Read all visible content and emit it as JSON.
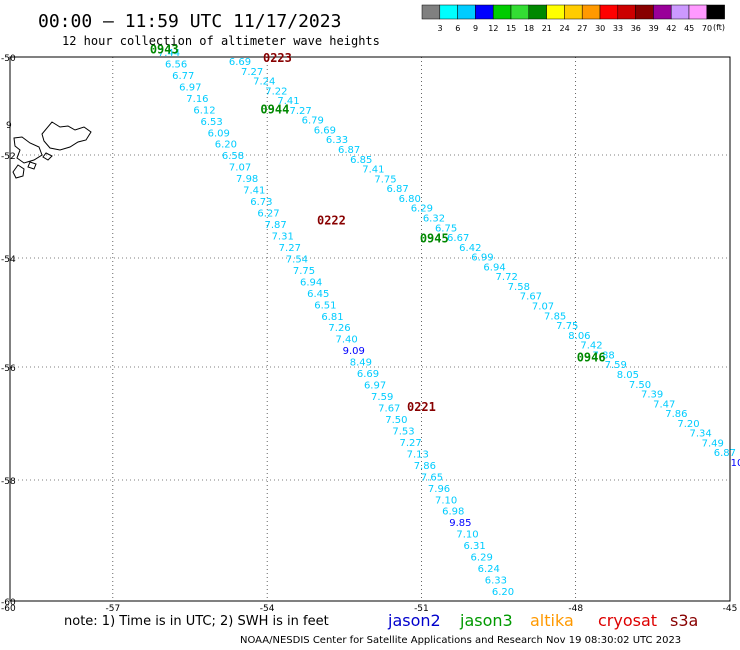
{
  "title": "00:00 – 11:59 UTC 11/17/2023",
  "subtitle": "12 hour collection of altimeter wave heights",
  "note": "note:  1) Time is in UTC;  2) SWH is in feet",
  "credit": "NOAA/NESDIS Center for Satellite Applications and Research    Nov 19 08:30:02 UTC 2023",
  "satellites": [
    {
      "name": "jason2",
      "color": "#0000cc"
    },
    {
      "name": "jason3",
      "color": "#009900"
    },
    {
      "name": "altika",
      "color": "#ff9900"
    },
    {
      "name": "cryosat",
      "color": "#dd0000"
    },
    {
      "name": "s3a",
      "color": "#880000"
    }
  ],
  "legend": {
    "unit": "(ft)",
    "labels": [
      "3",
      "6",
      "9",
      "12",
      "15",
      "18",
      "21",
      "24",
      "27",
      "30",
      "33",
      "36",
      "39",
      "42",
      "45",
      "70"
    ],
    "colors": [
      "#808080",
      "#00ffff",
      "#00ccff",
      "#0000ff",
      "#00cc00",
      "#33dd33",
      "#008800",
      "#ffff00",
      "#ffcc00",
      "#ff9900",
      "#ff0000",
      "#cc0000",
      "#880000",
      "#990099",
      "#cc99ff",
      "#ff99ff",
      "#000000"
    ]
  },
  "chart_data": {
    "type": "scatter",
    "x_ticks": [
      "-57",
      "-54",
      "-51",
      "-48",
      "-45"
    ],
    "y_ticks": [
      "-50",
      "-52",
      "-54",
      "-56",
      "-58",
      "-60"
    ],
    "xlim": [
      -59,
      -45
    ],
    "ylim": [
      -60,
      -50
    ],
    "pass_labels": [
      {
        "text": "0943",
        "lon": -56.0,
        "lat": -49.93,
        "color": "#008800"
      },
      {
        "text": "0223",
        "lon": -53.8,
        "lat": -50.1,
        "color": "#880000"
      },
      {
        "text": "0944",
        "lon": -53.85,
        "lat": -51.15,
        "color": "#008800"
      },
      {
        "text": "0222",
        "lon": -52.75,
        "lat": -53.35,
        "color": "#880000"
      },
      {
        "text": "0945",
        "lon": -50.75,
        "lat": -53.7,
        "color": "#008800"
      },
      {
        "text": "0946",
        "lon": -47.7,
        "lat": -55.9,
        "color": "#008800"
      },
      {
        "text": "0221",
        "lon": -51.0,
        "lat": -56.78,
        "color": "#880000"
      }
    ],
    "coastline_label": "9"
  }
}
